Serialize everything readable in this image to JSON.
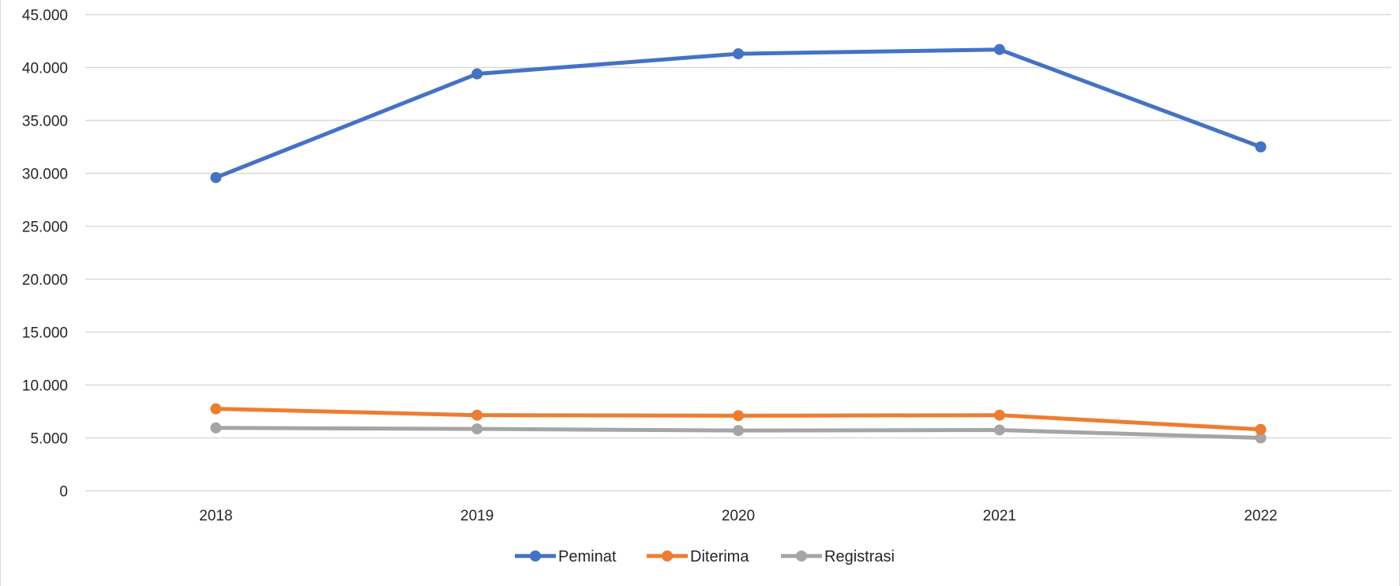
{
  "chart_data": {
    "type": "line",
    "categories": [
      "2018",
      "2019",
      "2020",
      "2021",
      "2022"
    ],
    "series": [
      {
        "name": "Peminat",
        "color": "#4472c4",
        "values": [
          29600,
          39400,
          41300,
          41700,
          32500
        ]
      },
      {
        "name": "Diterima",
        "color": "#ed7d31",
        "values": [
          7750,
          7150,
          7100,
          7150,
          5800
        ]
      },
      {
        "name": "Registrasi",
        "color": "#a5a5a5",
        "values": [
          5950,
          5850,
          5700,
          5750,
          5000
        ]
      }
    ],
    "ylim": [
      0,
      45000
    ],
    "yticks": [
      0,
      5000,
      10000,
      15000,
      20000,
      25000,
      30000,
      35000,
      40000,
      45000
    ],
    "ytick_labels": [
      "0",
      "5.000",
      "10.000",
      "15.000",
      "20.000",
      "25.000",
      "30.000",
      "35.000",
      "40.000",
      "45.000"
    ],
    "grid": true,
    "legend": "bottom"
  }
}
